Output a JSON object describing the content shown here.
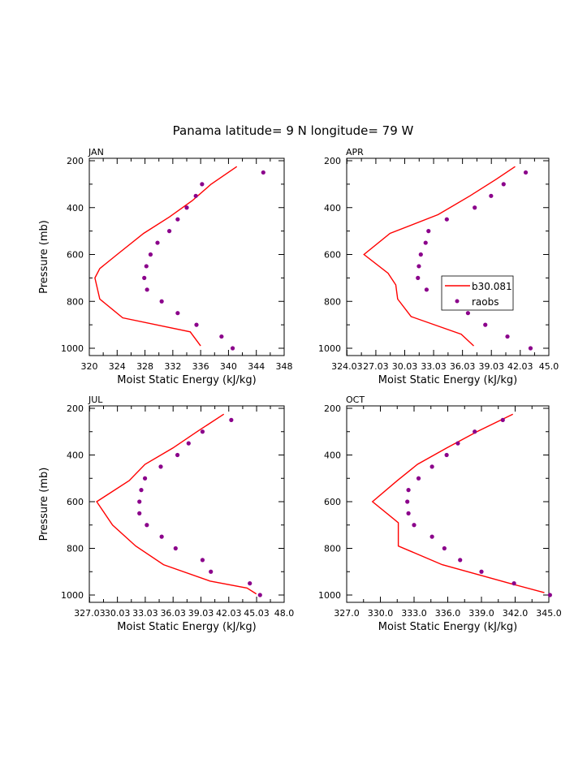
{
  "figure": {
    "title": "Panama   latitude= 9 N longitude= 79 W"
  },
  "colors": {
    "model": "#ff0000",
    "observations": "#8b008b",
    "axes": "#000000"
  },
  "legend": {
    "model_label": "b30.081",
    "obs_label": "raobs"
  },
  "chart_data": [
    {
      "type": "line",
      "panel": "JAN",
      "xlabel": "Moist Static Energy (kJ/kg)",
      "ylabel": "Pressure (mb)",
      "xlim": [
        320,
        348
      ],
      "ylim": [
        1000,
        200
      ],
      "xticks": [
        320,
        324,
        328,
        332,
        336,
        340,
        344,
        348
      ],
      "xtick_labels": [
        "320",
        "324",
        "328",
        "332",
        "336",
        "340",
        "344",
        "348"
      ],
      "yticks": [
        200,
        400,
        600,
        800,
        1000
      ],
      "ytick_labels": [
        "200",
        "400",
        "600",
        "800",
        "1000"
      ],
      "series": [
        {
          "name": "b30.081",
          "style": "line",
          "x": [
            341.2,
            337.5,
            334.8,
            331.5,
            327.8,
            324,
            321.5,
            320.8,
            321.5,
            324.8,
            334.5,
            336
          ],
          "y": [
            225,
            300,
            370,
            440,
            510,
            600,
            660,
            700,
            790,
            870,
            930,
            990
          ]
        },
        {
          "name": "raobs",
          "style": "markers",
          "x": [
            345,
            336.2,
            335.3,
            334,
            332.7,
            331.5,
            329.8,
            328.8,
            328.2,
            327.9,
            328.3,
            330.4,
            332.7,
            335.4,
            339,
            340.6
          ],
          "y": [
            250,
            300,
            350,
            400,
            450,
            500,
            550,
            600,
            650,
            700,
            750,
            800,
            850,
            900,
            950,
            1000
          ]
        }
      ]
    },
    {
      "type": "line",
      "panel": "APR",
      "xlabel": "Moist Static Energy (kJ/kg)",
      "ylabel": "",
      "xlim": [
        324.0,
        345.0
      ],
      "ylim": [
        1000,
        200
      ],
      "xticks": [
        324.03,
        327.03,
        330.03,
        333.03,
        336.03,
        339.03,
        342.03,
        345.0
      ],
      "xtick_labels": [
        "324.03",
        "27.03",
        "30.03",
        "33.03",
        "36.03",
        "39.03",
        "42.03",
        "45.0"
      ],
      "yticks": [
        200,
        400,
        600,
        800,
        1000
      ],
      "ytick_labels": [
        "200",
        "400",
        "600",
        "800",
        "1000"
      ],
      "series": [
        {
          "name": "b30.081",
          "style": "line",
          "x": [
            341.5,
            339.5,
            336.8,
            333.5,
            328.5,
            325.8,
            328.3,
            329.1,
            329.3,
            330.7,
            335.9,
            337.2
          ],
          "y": [
            225,
            280,
            350,
            430,
            510,
            600,
            680,
            730,
            790,
            865,
            940,
            990
          ]
        },
        {
          "name": "raobs",
          "style": "markers",
          "x": [
            342.6,
            340.3,
            339,
            337.3,
            334.4,
            332.5,
            332.2,
            331.7,
            331.5,
            331.4,
            332.3,
            334.3,
            336.6,
            338.4,
            340.7,
            343.1
          ],
          "y": [
            250,
            300,
            350,
            400,
            450,
            500,
            550,
            600,
            650,
            700,
            750,
            800,
            850,
            900,
            950,
            1000
          ]
        }
      ]
    },
    {
      "type": "line",
      "panel": "JUL",
      "xlabel": "Moist Static Energy (kJ/kg)",
      "ylabel": "Pressure (mb)",
      "xlim": [
        327.0,
        348.0
      ],
      "ylim": [
        1000,
        200
      ],
      "xticks": [
        327.03,
        330.03,
        333.03,
        336.03,
        339.03,
        342.03,
        345.03,
        348.0
      ],
      "xtick_labels": [
        "327.03",
        "30.03",
        "33.03",
        "36.03",
        "39.03",
        "42.03",
        "45.03",
        "48.0"
      ],
      "yticks": [
        200,
        400,
        600,
        800,
        1000
      ],
      "ytick_labels": [
        "200",
        "400",
        "600",
        "800",
        "1000"
      ],
      "series": [
        {
          "name": "b30.081",
          "style": "line",
          "x": [
            341.5,
            338.6,
            336,
            333,
            331.3,
            327.8,
            329.5,
            332,
            335,
            340,
            344,
            345
          ],
          "y": [
            225,
            300,
            370,
            440,
            510,
            600,
            700,
            790,
            870,
            940,
            970,
            995
          ]
        },
        {
          "name": "raobs",
          "style": "markers",
          "x": [
            342.3,
            339.2,
            337.7,
            336.5,
            334.7,
            333,
            332.6,
            332.4,
            332.4,
            333.2,
            334.8,
            336.3,
            339.2,
            340.1,
            344.3,
            345.4
          ],
          "y": [
            250,
            300,
            350,
            400,
            450,
            500,
            550,
            600,
            650,
            700,
            750,
            800,
            850,
            900,
            950,
            1000
          ]
        }
      ]
    },
    {
      "type": "line",
      "panel": "OCT",
      "xlabel": "Moist Static Energy (kJ/kg)",
      "ylabel": "",
      "xlim": [
        327.0,
        345.0
      ],
      "ylim": [
        1000,
        200
      ],
      "xticks": [
        327.0,
        330.0,
        333.0,
        336.0,
        339.0,
        342.0,
        345.0
      ],
      "xtick_labels": [
        "327.0",
        "330.0",
        "333.0",
        "336.0",
        "339.0",
        "342.0",
        "345.0"
      ],
      "yticks": [
        200,
        400,
        600,
        800,
        1000
      ],
      "ytick_labels": [
        "200",
        "400",
        "600",
        "800",
        "1000"
      ],
      "series": [
        {
          "name": "b30.081",
          "style": "line",
          "x": [
            341.8,
            338.6,
            335.9,
            333.3,
            331.5,
            329.3,
            331.6,
            331.6,
            331.6,
            335.5,
            341.5,
            344.6
          ],
          "y": [
            225,
            300,
            370,
            440,
            510,
            600,
            690,
            730,
            790,
            870,
            950,
            990
          ]
        },
        {
          "name": "raobs",
          "style": "markers",
          "x": [
            340.9,
            338.4,
            336.9,
            335.9,
            334.6,
            333.4,
            332.5,
            332.4,
            332.5,
            333,
            334.6,
            335.7,
            337.1,
            339,
            341.9,
            345.1
          ],
          "y": [
            250,
            300,
            350,
            400,
            450,
            500,
            550,
            600,
            650,
            700,
            750,
            800,
            850,
            900,
            950,
            1000
          ]
        }
      ]
    }
  ]
}
